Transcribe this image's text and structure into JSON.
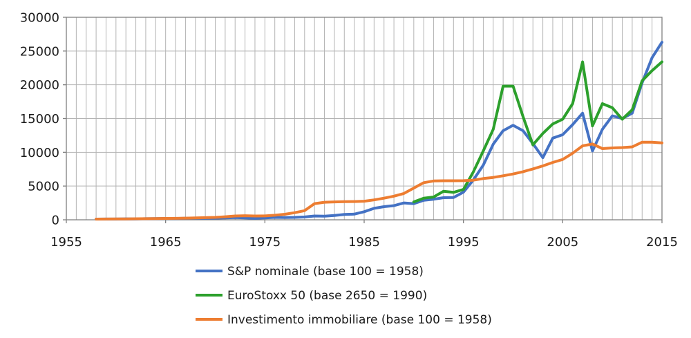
{
  "chart_data": {
    "type": "line",
    "title": "",
    "xlabel": "",
    "ylabel": "",
    "grid": true,
    "legend_position": "bottom-left",
    "x_axis": {
      "range": [
        1955,
        2015
      ],
      "ticks": [
        1955,
        1965,
        1975,
        1985,
        1995,
        2005,
        2015
      ],
      "gridline_interval_years": 1
    },
    "y_axis": {
      "range": [
        0,
        30000
      ],
      "ticks": [
        0,
        5000,
        10000,
        15000,
        20000,
        25000,
        30000
      ],
      "gridline_interval": 5000
    },
    "series": [
      {
        "name": "S&P nominale (base 100 = 1958)",
        "color": "#4472C4",
        "x": [
          1958,
          1959,
          1960,
          1961,
          1962,
          1963,
          1964,
          1965,
          1966,
          1967,
          1968,
          1969,
          1970,
          1971,
          1972,
          1973,
          1974,
          1975,
          1976,
          1977,
          1978,
          1979,
          1980,
          1981,
          1982,
          1983,
          1984,
          1985,
          1986,
          1987,
          1988,
          1989,
          1990,
          1991,
          1992,
          1993,
          1994,
          1995,
          1996,
          1997,
          1998,
          1999,
          2000,
          2001,
          2002,
          2003,
          2004,
          2005,
          2006,
          2007,
          2008,
          2009,
          2010,
          2011,
          2012,
          2013,
          2014,
          2015
        ],
        "values": [
          100,
          115,
          115,
          140,
          130,
          160,
          185,
          205,
          190,
          230,
          255,
          235,
          245,
          285,
          330,
          280,
          210,
          290,
          360,
          335,
          355,
          420,
          560,
          530,
          640,
          790,
          840,
          1200,
          1700,
          1950,
          2100,
          2500,
          2400,
          2900,
          3050,
          3280,
          3300,
          4100,
          5900,
          8100,
          11200,
          13200,
          14000,
          13200,
          11300,
          9200,
          12100,
          12600,
          14100,
          15800,
          10200,
          13400,
          15400,
          15000,
          15800,
          20300,
          24000,
          26300
        ]
      },
      {
        "name": "EuroStoxx 50 (base 2650 = 1990)",
        "color": "#2CA02C",
        "x": [
          1990,
          1991,
          1992,
          1993,
          1994,
          1995,
          1996,
          1997,
          1998,
          1999,
          2000,
          2001,
          2002,
          2003,
          2004,
          2005,
          2006,
          2007,
          2008,
          2009,
          2010,
          2011,
          2012,
          2013,
          2014,
          2015
        ],
        "values": [
          2650,
          3200,
          3380,
          4230,
          4060,
          4500,
          7100,
          10200,
          13400,
          19800,
          19800,
          15300,
          11100,
          12800,
          14200,
          14900,
          17200,
          23400,
          13900,
          17200,
          16600,
          14900,
          16300,
          20600,
          22100,
          23400
        ]
      },
      {
        "name": "Investimento immobiliare (base 100 = 1958)",
        "color": "#ED7D31",
        "x": [
          1958,
          1959,
          1960,
          1961,
          1962,
          1963,
          1964,
          1965,
          1966,
          1967,
          1968,
          1969,
          1970,
          1971,
          1972,
          1973,
          1974,
          1975,
          1976,
          1977,
          1978,
          1979,
          1980,
          1981,
          1982,
          1983,
          1984,
          1985,
          1986,
          1987,
          1988,
          1989,
          1990,
          1991,
          1992,
          1993,
          1994,
          1995,
          1996,
          1997,
          1998,
          1999,
          2000,
          2001,
          2002,
          2003,
          2004,
          2005,
          2006,
          2007,
          2008,
          2009,
          2010,
          2011,
          2012,
          2013,
          2014,
          2015
        ],
        "values": [
          100,
          110,
          120,
          135,
          150,
          165,
          180,
          200,
          220,
          250,
          280,
          320,
          360,
          450,
          560,
          600,
          560,
          570,
          680,
          820,
          1050,
          1350,
          2400,
          2600,
          2650,
          2680,
          2700,
          2750,
          2950,
          3200,
          3500,
          3900,
          4700,
          5500,
          5750,
          5780,
          5780,
          5800,
          5870,
          6110,
          6280,
          6520,
          6790,
          7130,
          7540,
          7990,
          8500,
          8940,
          9860,
          10960,
          11230,
          10550,
          10650,
          10700,
          10800,
          11500,
          11500,
          11400
        ]
      }
    ]
  },
  "colors": {
    "gridline": "#b3b3b3",
    "axis": "#808080",
    "text": "#1a1a1a",
    "background": "#ffffff"
  }
}
